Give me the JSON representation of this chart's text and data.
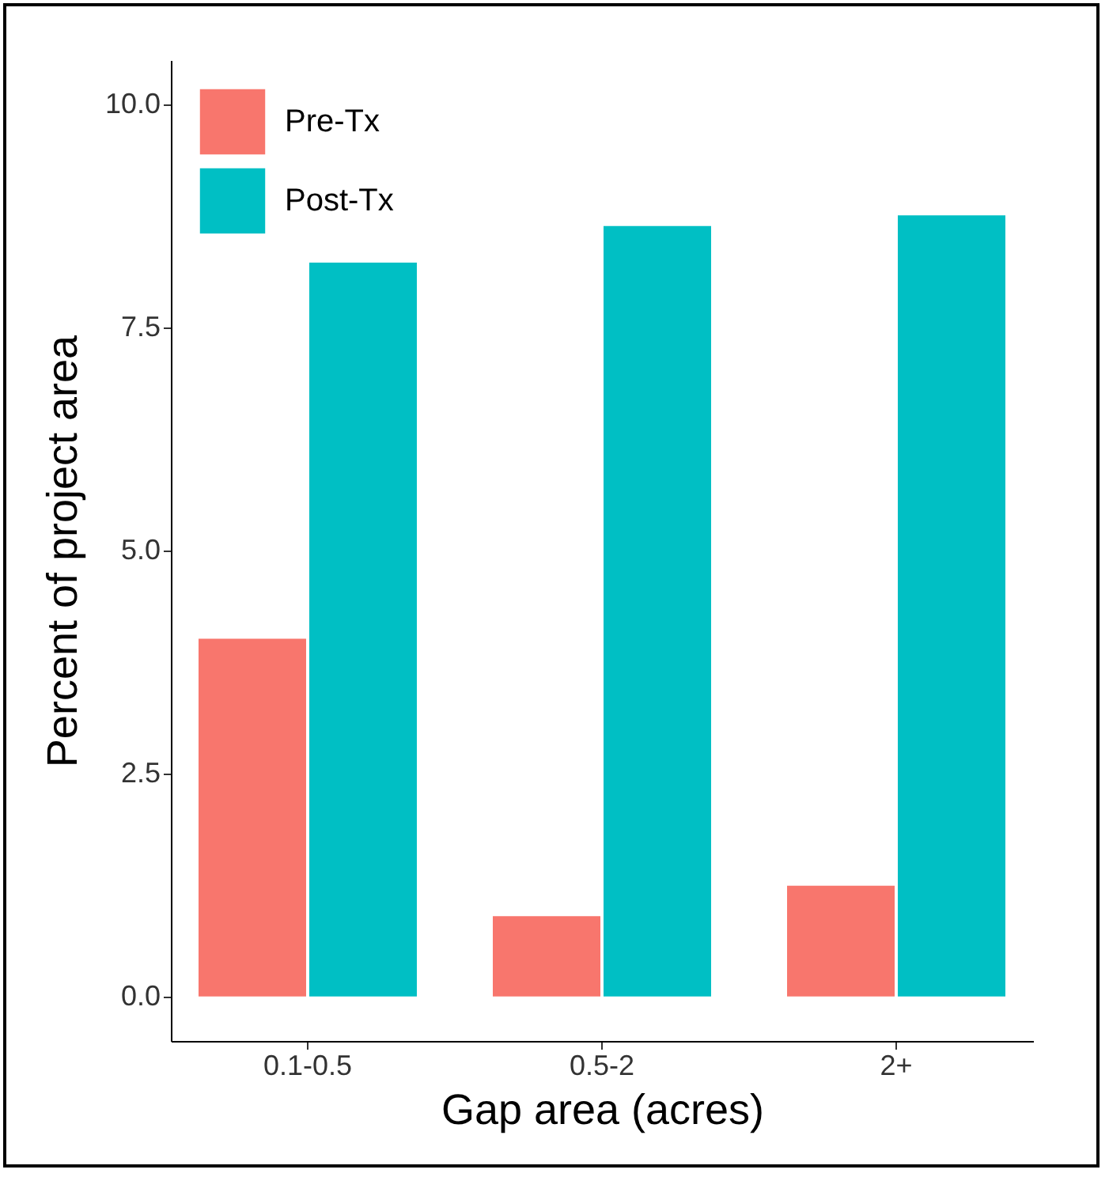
{
  "chart_data": {
    "type": "bar",
    "xlabel": "Gap area (acres)",
    "ylabel": "Percent of project area",
    "categories": [
      "0.1-0.5",
      "0.5-2",
      "2+"
    ],
    "series": [
      {
        "name": "Pre-Tx",
        "color": "#f8766d",
        "values": [
          4.01,
          0.9,
          1.24
        ]
      },
      {
        "name": "Post-Tx",
        "color": "#00bfc4",
        "values": [
          8.23,
          8.64,
          8.76
        ]
      }
    ],
    "ylim": [
      -0.5,
      10.5
    ],
    "yticks": [
      {
        "value": 0,
        "label": "0.0"
      },
      {
        "value": 2.5,
        "label": "2.5"
      },
      {
        "value": 5,
        "label": "5.0"
      },
      {
        "value": 7.5,
        "label": "7.5"
      },
      {
        "value": 10,
        "label": "10.0"
      }
    ],
    "grid": false,
    "legend": "top left"
  }
}
